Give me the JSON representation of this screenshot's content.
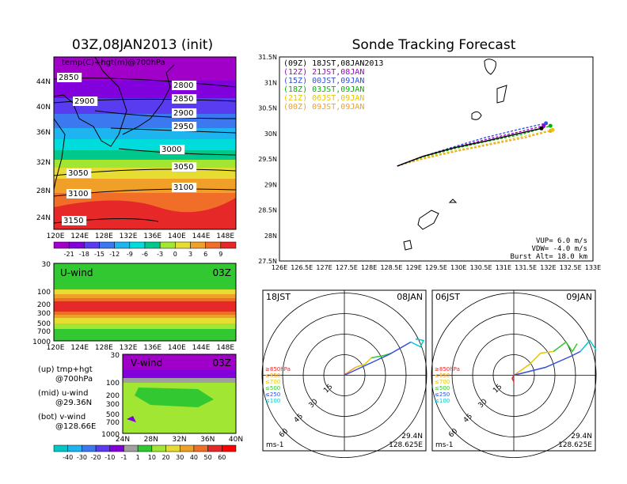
{
  "left_title": "03Z,08JAN2013 (init)",
  "right_title": "Sonde Tracking Forecast",
  "map_panel": {
    "label": "temp(C)+hgt(m)@700hPa",
    "lat_ticks": [
      "44N",
      "40N",
      "36N",
      "32N",
      "28N",
      "24N"
    ],
    "lon_ticks": [
      "120E",
      "124E",
      "128E",
      "132E",
      "136E",
      "140E",
      "144E",
      "148E"
    ],
    "contour_labels": [
      "2850",
      "2900",
      "2800",
      "2850",
      "2900",
      "2950",
      "3000",
      "3050",
      "3050",
      "3100",
      "3100",
      "3150"
    ]
  },
  "temp_colorbar": {
    "labels": [
      "-21",
      "-18",
      "-15",
      "-12",
      "-9",
      "-6",
      "-3",
      "0",
      "3",
      "6",
      "9"
    ],
    "colors": [
      "#a000c8",
      "#8200dc",
      "#5a3cf0",
      "#3c78f0",
      "#1eb4f0",
      "#00dcdc",
      "#00c88c",
      "#a0e632",
      "#e6dc32",
      "#f0a028",
      "#f06e28",
      "#e62828"
    ]
  },
  "uwind_panel": {
    "label": "U-wind",
    "time": "03Z",
    "pressure_ticks": [
      "30",
      "100",
      "200",
      "300",
      "500",
      "700",
      "1000"
    ],
    "lon_ticks": [
      "120E",
      "124E",
      "128E",
      "132E",
      "136E",
      "140E",
      "144E",
      "148E"
    ]
  },
  "vwind_panel": {
    "label": "V-wind",
    "time": "03Z",
    "pressure_ticks": [
      "30",
      "100",
      "200",
      "300",
      "500",
      "700",
      "1000"
    ],
    "lat_ticks": [
      "24N",
      "28N",
      "32N",
      "36N",
      "40N"
    ]
  },
  "legend_notes": [
    {
      "title": "(up) tmp+hgt",
      "sub": "@700hPa"
    },
    {
      "title": "(mid) u-wind",
      "sub": "@29.36N"
    },
    {
      "title": "(bot) v-wind",
      "sub": "@128.66E"
    }
  ],
  "wind_colorbar": {
    "labels": [
      "-40",
      "-30",
      "-20",
      "-10",
      "-1",
      "1",
      "10",
      "20",
      "30",
      "40",
      "50",
      "60"
    ],
    "colors": [
      "#00c8c8",
      "#1eb4f0",
      "#3c78f0",
      "#5a3cf0",
      "#8200dc",
      "#a0a0a0",
      "#32c832",
      "#a0e632",
      "#e6dc32",
      "#f0a028",
      "#f06e28",
      "#e62828",
      "#ff0000"
    ]
  },
  "track_panel": {
    "y_ticks": [
      "31.5N",
      "31N",
      "30.5N",
      "30N",
      "29.5N",
      "29N",
      "28.5N",
      "28N",
      "27.5N"
    ],
    "x_ticks": [
      "126E",
      "126.5E",
      "127E",
      "127.5E",
      "128E",
      "128.5E",
      "129E",
      "129.5E",
      "130E",
      "130.5E",
      "131E",
      "131.5E",
      "132E",
      "132.5E",
      "133E"
    ],
    "runs": [
      {
        "label": "(09Z)  18JST,08JAN2013",
        "color": "#000000"
      },
      {
        "label": "(12Z)  21JST,08JAN",
        "color": "#a000c8"
      },
      {
        "label": "(15Z)  00JST,09JAN",
        "color": "#3250dc"
      },
      {
        "label": "(18Z)  03JST,09JAN",
        "color": "#00b400"
      },
      {
        "label": "(21Z)  06JST,09JAN",
        "color": "#e6c800"
      },
      {
        "label": "(00Z)  09JST,09JAN",
        "color": "#f0a028"
      }
    ],
    "params": [
      "VUP=  6.0  m/s",
      "VDW= -4.0  m/s",
      "Burst Alt=  18.0  km"
    ]
  },
  "chart_data": [
    {
      "type": "line",
      "title": "Sonde Tracking Forecast",
      "xlim": [
        126,
        133
      ],
      "ylim": [
        27.5,
        31.5
      ],
      "series": [
        {
          "name": "(09Z) 18JST,08JAN2013",
          "color": "#000000",
          "points": [
            [
              128.63,
              29.36
            ],
            [
              129.2,
              29.55
            ],
            [
              129.9,
              29.72
            ],
            [
              130.6,
              29.85
            ],
            [
              131.2,
              29.97
            ],
            [
              131.85,
              30.1
            ]
          ]
        },
        {
          "name": "(12Z) 21JST,08JAN",
          "color": "#a000c8",
          "points": [
            [
              128.63,
              29.36
            ],
            [
              129.2,
              29.55
            ],
            [
              129.9,
              29.72
            ],
            [
              130.6,
              29.88
            ],
            [
              131.3,
              30.02
            ],
            [
              131.9,
              30.15
            ]
          ]
        },
        {
          "name": "(15Z) 00JST,09JAN",
          "color": "#3250dc",
          "points": [
            [
              128.63,
              29.36
            ],
            [
              129.2,
              29.55
            ],
            [
              129.9,
              29.74
            ],
            [
              130.6,
              29.92
            ],
            [
              131.3,
              30.07
            ],
            [
              131.95,
              30.2
            ]
          ]
        },
        {
          "name": "(18Z) 03JST,09JAN",
          "color": "#00b400",
          "points": [
            [
              128.63,
              29.36
            ],
            [
              129.2,
              29.54
            ],
            [
              129.9,
              29.7
            ],
            [
              130.6,
              29.84
            ],
            [
              131.4,
              29.98
            ],
            [
              132.05,
              30.15
            ]
          ]
        },
        {
          "name": "(21Z) 06JST,09JAN",
          "color": "#e6c800",
          "points": [
            [
              128.63,
              29.36
            ],
            [
              129.2,
              29.52
            ],
            [
              129.9,
              29.66
            ],
            [
              130.7,
              29.8
            ],
            [
              131.5,
              29.95
            ],
            [
              132.1,
              30.07
            ]
          ]
        },
        {
          "name": "(00Z) 09JST,09JAN",
          "color": "#f0a028",
          "points": [
            [
              128.63,
              29.36
            ],
            [
              129.2,
              29.5
            ],
            [
              129.9,
              29.64
            ],
            [
              130.7,
              29.78
            ],
            [
              131.5,
              29.92
            ],
            [
              132.05,
              30.05
            ]
          ]
        }
      ]
    }
  ],
  "hodo_left": {
    "time": "18JST",
    "date": "08JAN",
    "rings": [
      "15",
      "30",
      "45",
      "60"
    ],
    "levels": [
      "≥850hPa",
      "≤850",
      "≤700",
      "≤500",
      "≤250",
      "≤100"
    ],
    "level_colors": [
      "#e62828",
      "#f0a028",
      "#e6c800",
      "#32c832",
      "#3250dc",
      "#00c8c8"
    ],
    "lat": "29.4N",
    "lon": "128.625E",
    "units": "ms-1"
  },
  "hodo_right": {
    "time": "06JST",
    "date": "09JAN",
    "rings": [
      "15",
      "30",
      "45",
      "60"
    ],
    "levels": [
      "≥850hPa",
      "≤850",
      "≤700",
      "≤500",
      "≤250",
      "≤100"
    ],
    "level_colors": [
      "#e62828",
      "#f0a028",
      "#e6c800",
      "#32c832",
      "#3250dc",
      "#00c8c8"
    ],
    "lat": "29.4N",
    "lon": "128.625E",
    "units": "ms-1"
  }
}
